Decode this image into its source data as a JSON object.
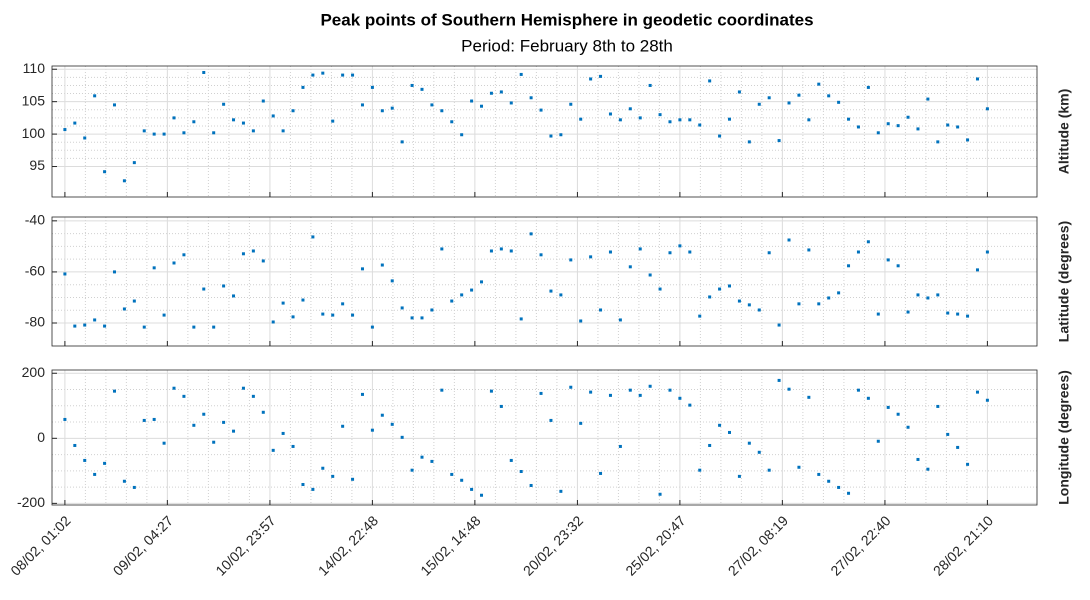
{
  "title": "Peak points of Southern Hemisphere in geodetic coordinates",
  "subtitle": "Period: February 8th to 28th",
  "chart_data": [
    {
      "type": "scatter",
      "ylabel": "Altitude (km)",
      "color": "#0072bd",
      "grid": true,
      "xlim": [
        -1.3,
        98
      ],
      "ylim": [
        90.3,
        110.5
      ],
      "yticks": [
        95,
        100,
        105,
        110
      ],
      "values": [
        100.7,
        101.7,
        99.4,
        105.9,
        94.2,
        104.5,
        92.8,
        95.6,
        100.5,
        100,
        100,
        102.5,
        100.2,
        101.9,
        109.5,
        100.2,
        104.6,
        102.2,
        101.7,
        100.5,
        105.1,
        102.8,
        100.5,
        103.6,
        107.2,
        109.1,
        109.4,
        102,
        109.1,
        109.1,
        104.5,
        107.2,
        103.6,
        104,
        98.8,
        107.5,
        106.9,
        104.5,
        103.6,
        101.9,
        99.9,
        105.1,
        104.3,
        106.3,
        106.5,
        104.8,
        109.2,
        105.6,
        103.7,
        99.7,
        99.9,
        104.6,
        102.3,
        108.5,
        108.9,
        103.1,
        102.2,
        103.9,
        102.5,
        107.5,
        103,
        101.9,
        102.2,
        102.2,
        101.4,
        108.2,
        99.7,
        102.3,
        106.5,
        98.8,
        104.6,
        105.6,
        99,
        104.8,
        106,
        102.2,
        107.7,
        105.9,
        104.9,
        102.3,
        101.1,
        107.2,
        100.2,
        101.6,
        101.3,
        102.6,
        100.8,
        105.4,
        98.8,
        101.4,
        101.1,
        99.1,
        108.5,
        103.9
      ]
    },
    {
      "type": "scatter",
      "ylabel": "Latitude (degrees)",
      "color": "#0072bd",
      "grid": true,
      "xlim": [
        -1.3,
        98
      ],
      "ylim": [
        -89,
        -38.5
      ],
      "yticks": [
        -80,
        -60,
        -40
      ],
      "values": [
        -60.8,
        -81.2,
        -80.8,
        -78.8,
        -81.2,
        -60,
        -74.5,
        -71.4,
        -81.6,
        -58.4,
        -76.9,
        -56.5,
        -53.3,
        -81.6,
        -66.7,
        -81.6,
        -65.5,
        -69.4,
        -52.9,
        -51.8,
        -55.7,
        -79.6,
        -72.2,
        -77.6,
        -71,
        -46.3,
        -76.5,
        -76.9,
        -72.5,
        -76.9,
        -58.8,
        -81.6,
        -57.3,
        -63.5,
        -74.1,
        -78,
        -78,
        -74.9,
        -51,
        -71.4,
        -69,
        -67.1,
        -63.9,
        -51.8,
        -51,
        -51.8,
        -78.4,
        -45.1,
        -53.3,
        -67.5,
        -69,
        -55.3,
        -79.2,
        -54.1,
        -74.9,
        -52.2,
        -78.8,
        -58,
        -51,
        -61.2,
        -66.7,
        -52.5,
        -49.8,
        -52.2,
        -77.3,
        -69.8,
        -66.7,
        -65.5,
        -71.4,
        -72.9,
        -74.9,
        -52.5,
        -80.8,
        -47.5,
        -72.5,
        -51.4,
        -72.5,
        -70.2,
        -68.2,
        -57.6,
        -52.2,
        -48.2,
        -76.5,
        -55.3,
        -57.6,
        -75.7,
        -69,
        -70.2,
        -69,
        -76.1,
        -76.5,
        -77.3,
        -59.2,
        -52.2
      ]
    },
    {
      "type": "scatter",
      "ylabel": "Longitude (degrees)",
      "color": "#0072bd",
      "grid": true,
      "xlim": [
        -1.3,
        98
      ],
      "ylim": [
        -205,
        210
      ],
      "yticks": [
        -200,
        0,
        200
      ],
      "xticks": [
        {
          "value": 0,
          "label": "08/02, 01:02"
        },
        {
          "value": 10.33,
          "label": "09/02, 04:27"
        },
        {
          "value": 20.67,
          "label": "10/02, 23:57"
        },
        {
          "value": 31,
          "label": "14/02, 22:48"
        },
        {
          "value": 41.33,
          "label": "15/02, 14:48"
        },
        {
          "value": 51.67,
          "label": "20/02, 23:32"
        },
        {
          "value": 62,
          "label": "25/02, 20:47"
        },
        {
          "value": 72.33,
          "label": "27/02, 08:19"
        },
        {
          "value": 82.67,
          "label": "27/02, 22:40"
        },
        {
          "value": 93,
          "label": "28/02, 21:10"
        }
      ],
      "values": [
        58,
        -22,
        -68,
        -111,
        -77,
        145,
        -132,
        -151,
        55,
        58,
        -15,
        154,
        129,
        40,
        74,
        -12,
        49,
        22,
        154,
        129,
        80,
        -37,
        15,
        -25,
        -142,
        -157,
        -92,
        -117,
        37,
        -126,
        135,
        25,
        71,
        43,
        3,
        -98,
        -58,
        -71,
        148,
        -111,
        -129,
        -157,
        -175,
        145,
        98,
        -68,
        -102,
        -145,
        138,
        55,
        -163,
        157,
        46,
        142,
        -108,
        132,
        -25,
        148,
        132,
        160,
        -172,
        148,
        123,
        102,
        -98,
        -22,
        40,
        18,
        -117,
        -15,
        -43,
        -98,
        178,
        151,
        -89,
        126,
        -111,
        -132,
        -151,
        -169,
        148,
        123,
        -9,
        95,
        74,
        34,
        -65,
        -95,
        98,
        12,
        -28,
        -80,
        142,
        117
      ]
    }
  ]
}
